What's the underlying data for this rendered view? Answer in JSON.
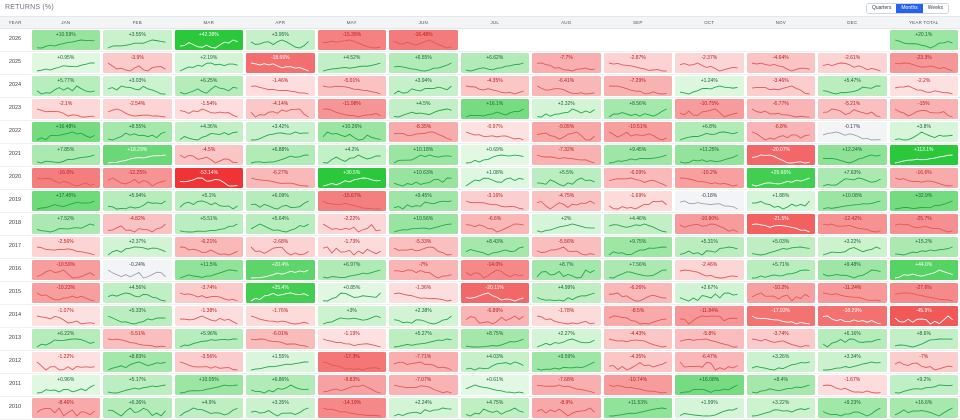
{
  "page": {
    "title": "RETURNS (%)"
  },
  "toggle": {
    "options": [
      "Quarters",
      "Months",
      "Weeks"
    ],
    "active": "Months"
  },
  "chart_data": {
    "type": "heatmap",
    "title": "RETURNS (%)",
    "columns": [
      "YEAR",
      "JAN",
      "FEB",
      "MAR",
      "APR",
      "MAY",
      "JUN",
      "JUL",
      "AUG",
      "SEP",
      "OCT",
      "NOV",
      "DEC",
      "YEAR TOTAL"
    ],
    "rows": [
      {
        "year": "2026",
        "values": [
          "+10.59%",
          "+3.55%",
          "+42.38%",
          "+3.95%",
          "-15.35%",
          "-16.48%",
          null,
          null,
          null,
          null,
          null,
          null,
          "+20.1%"
        ]
      },
      {
        "year": "2025",
        "values": [
          "+0.95%",
          "-3.9%",
          "+2.19%",
          "-18.66%",
          "+4.52%",
          "+6.55%",
          "+6.62%",
          "-7.7%",
          "-2.87%",
          "-2.37%",
          "-4.64%",
          "-2.61%",
          "-23.3%"
        ]
      },
      {
        "year": "2024",
        "values": [
          "+5.77%",
          "+3.03%",
          "+6.25%",
          "-1.46%",
          "-5.01%",
          "+3.94%",
          "-4.35%",
          "-6.41%",
          "-7.29%",
          "+1.24%",
          "-3.46%",
          "+5.47%",
          "-2.2%"
        ]
      },
      {
        "year": "2023",
        "values": [
          "-2.1%",
          "-2.54%",
          "-1.54%",
          "-4.14%",
          "-11.98%",
          "+4.5%",
          "+16.1%",
          "+2.32%",
          "+8.56%",
          "-10.75%",
          "-6.77%",
          "-5.21%",
          "-15%"
        ]
      },
      {
        "year": "2022",
        "values": [
          "+16.48%",
          "+8.55%",
          "+4.36%",
          "+3.42%",
          "+10.26%",
          "-8.35%",
          "-0.97%",
          "-9.05%",
          "-10.51%",
          "+6.8%",
          "-6.8%",
          "-0.17%",
          "+3.8%"
        ]
      },
      {
        "year": "2021",
        "values": [
          "+7.85%",
          "+18.29%",
          "-4.5%",
          "+6.88%",
          "+4.2%",
          "+10.18%",
          "+0.69%",
          "-7.32%",
          "+9.45%",
          "+11.25%",
          "-20.07%",
          "+12.24%",
          "+113.1%"
        ]
      },
      {
        "year": "2020",
        "values": [
          "-16.0%",
          "-12.25%",
          "-53.14%",
          "-6.27%",
          "+30.5%",
          "+10.63%",
          "+1.08%",
          "+5.5%",
          "-6.09%",
          "-10.2%",
          "+25.66%",
          "+7.63%",
          "-16.6%"
        ]
      },
      {
        "year": "2019",
        "values": [
          "+17.45%",
          "+5.94%",
          "+5.1%",
          "+6.09%",
          "-15.67%",
          "+9.45%",
          "-3.16%",
          "-4.75%",
          "-1.69%",
          "-0.18%",
          "+1.88%",
          "+10.08%",
          "+32.9%"
        ]
      },
      {
        "year": "2018",
        "values": [
          "+7.52%",
          "-4.82%",
          "+5.51%",
          "+5.64%",
          "-2.22%",
          "+10.56%",
          "-6.6%",
          "+2%",
          "+4.46%",
          "-10.80%",
          "-21.5%",
          "-12.42%",
          "-25.7%"
        ]
      },
      {
        "year": "2017",
        "values": [
          "-2.56%",
          "+2.37%",
          "-6.21%",
          "-2.68%",
          "-1.73%",
          "-5.33%",
          "+8.43%",
          "-5.56%",
          "+9.75%",
          "+5.31%",
          "+5.03%",
          "+3.22%",
          "+15.2%"
        ]
      },
      {
        "year": "2016",
        "values": [
          "-10.59%",
          "-0.24%",
          "+11.5%",
          "+20.4%",
          "+6.97%",
          "-7%",
          "-14.0%",
          "+8.7%",
          "+7.56%",
          "-2.46%",
          "+5.71%",
          "+9.48%",
          "+44.0%"
        ]
      },
      {
        "year": "2015",
        "values": [
          "-10.23%",
          "+4.56%",
          "-3.74%",
          "+25.4%",
          "+0.85%",
          "-1.36%",
          "-20.11%",
          "+4.99%",
          "-6.26%",
          "+2.67%",
          "-10.2%",
          "-11.24%",
          "-27.6%"
        ]
      },
      {
        "year": "2014",
        "values": [
          "-1.07%",
          "+5.33%",
          "-1.38%",
          "-1.76%",
          "+3%",
          "+2.38%",
          "-6.89%",
          "-1.78%",
          "-8.5%",
          "-11.84%",
          "-17.93%",
          "-18.29%",
          "-45.9%"
        ]
      },
      {
        "year": "2013",
        "values": [
          "+6.22%",
          "-5.51%",
          "+5.96%",
          "-6.01%",
          "-1.19%",
          "+5.27%",
          "+8.75%",
          "+2.27%",
          "-4.43%",
          "-5.8%",
          "-3.74%",
          "+6.16%",
          "+8.6%"
        ]
      },
      {
        "year": "2012",
        "values": [
          "-1.22%",
          "+8.83%",
          "-3.56%",
          "+1.55%",
          "-17.3%",
          "-7.71%",
          "+4.03%",
          "+9.59%",
          "-4.35%",
          "-6.47%",
          "+3.26%",
          "+3.34%",
          "-7%"
        ]
      },
      {
        "year": "2011",
        "values": [
          "+0.96%",
          "+5.17%",
          "+10.05%",
          "+6.86%",
          "-9.83%",
          "-7.07%",
          "+0.61%",
          "-7.68%",
          "-10.74%",
          "+16.08%",
          "+8.4%",
          "-1.67%",
          "+9.2%"
        ]
      },
      {
        "year": "2010",
        "values": [
          "-8.46%",
          "+6.36%",
          "+4.9%",
          "+3.35%",
          "-14.19%",
          "+2.24%",
          "+4.75%",
          "-8.9%",
          "+11.53%",
          "+1.99%",
          "+3.22%",
          "+9.23%",
          "+16.6%"
        ]
      }
    ]
  }
}
